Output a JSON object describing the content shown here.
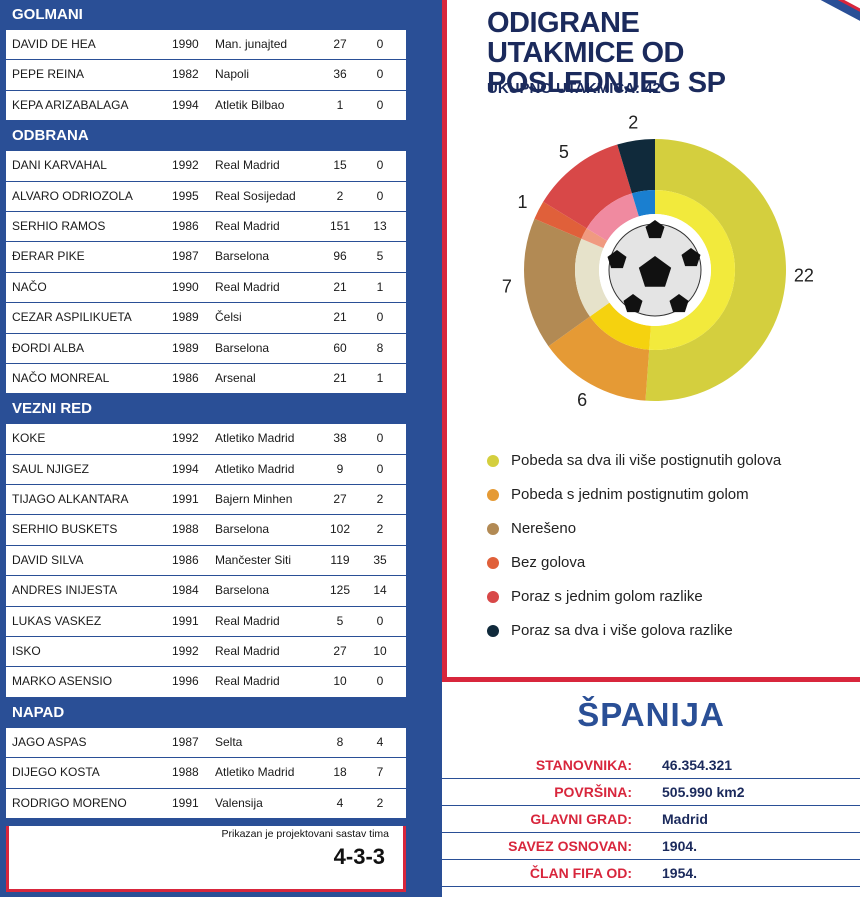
{
  "squad": {
    "sections": [
      {
        "title": "GOLMANI",
        "players": [
          {
            "name": "DAVID DE HEA",
            "year": "1990",
            "club": "Man. junajted",
            "apps": "27",
            "goals": "0"
          },
          {
            "name": "PEPE REINA",
            "year": "1982",
            "club": "Napoli",
            "apps": "36",
            "goals": "0"
          },
          {
            "name": "KEPA ARIZABALAGA",
            "year": "1994",
            "club": "Atletik Bilbao",
            "apps": "1",
            "goals": "0"
          }
        ]
      },
      {
        "title": "ODBRANA",
        "players": [
          {
            "name": "DANI KARVAHAL",
            "year": "1992",
            "club": "Real Madrid",
            "apps": "15",
            "goals": "0"
          },
          {
            "name": "ALVARO ODRIOZOLA",
            "year": "1995",
            "club": "Real Sosijedad",
            "apps": "2",
            "goals": "0"
          },
          {
            "name": "SERHIO RAMOS",
            "year": "1986",
            "club": "Real Madrid",
            "apps": "151",
            "goals": "13"
          },
          {
            "name": "ĐERAR PIKE",
            "year": "1987",
            "club": "Barselona",
            "apps": "96",
            "goals": "5"
          },
          {
            "name": "NAČO",
            "year": "1990",
            "club": "Real Madrid",
            "apps": "21",
            "goals": "1"
          },
          {
            "name": "CEZAR ASPILIKUETA",
            "year": "1989",
            "club": "Čelsi",
            "apps": "21",
            "goals": "0"
          },
          {
            "name": "ĐORDI ALBA",
            "year": "1989",
            "club": "Barselona",
            "apps": "60",
            "goals": "8"
          },
          {
            "name": "NAČO MONREAL",
            "year": "1986",
            "club": "Arsenal",
            "apps": "21",
            "goals": "1"
          }
        ]
      },
      {
        "title": "VEZNI RED",
        "players": [
          {
            "name": "KOKE",
            "year": "1992",
            "club": "Atletiko Madrid",
            "apps": "38",
            "goals": "0"
          },
          {
            "name": "SAUL NJIGEZ",
            "year": "1994",
            "club": "Atletiko Madrid",
            "apps": "9",
            "goals": "0"
          },
          {
            "name": "TIJAGO ALKANTARA",
            "year": "1991",
            "club": "Bajern Minhen",
            "apps": "27",
            "goals": "2"
          },
          {
            "name": "SERHIO BUSKETS",
            "year": "1988",
            "club": "Barselona",
            "apps": "102",
            "goals": "2"
          },
          {
            "name": "DAVID SILVA",
            "year": "1986",
            "club": "Mančester Siti",
            "apps": "119",
            "goals": "35"
          },
          {
            "name": "ANDRES INIJESTA",
            "year": "1984",
            "club": "Barselona",
            "apps": "125",
            "goals": "14"
          },
          {
            "name": "LUKAS VASKEZ",
            "year": "1991",
            "club": "Real Madrid",
            "apps": "5",
            "goals": "0"
          },
          {
            "name": "ISKO",
            "year": "1992",
            "club": "Real Madrid",
            "apps": "27",
            "goals": "10"
          },
          {
            "name": "MARKO ASENSIO",
            "year": "1996",
            "club": "Real Madrid",
            "apps": "10",
            "goals": "0"
          }
        ]
      },
      {
        "title": "NAPAD",
        "players": [
          {
            "name": "JAGO ASPAS",
            "year": "1987",
            "club": "Selta",
            "apps": "8",
            "goals": "4"
          },
          {
            "name": "DIJEGO KOSTA",
            "year": "1988",
            "club": "Atletiko Madrid",
            "apps": "18",
            "goals": "7"
          },
          {
            "name": "RODRIGO MORENO",
            "year": "1991",
            "club": "Valensija",
            "apps": "4",
            "goals": "2"
          }
        ]
      }
    ],
    "formation_note": "Prikazan je projektovani sastav tima",
    "formation": "4-3-3"
  },
  "chart_data": {
    "type": "pie",
    "title": "ODIGRANE UTAKMICE OD POSLEDNJEG SP",
    "subtitle": "UKUPNO UTAKMICA: 42",
    "categories": [
      "Pobeda sa dva ili više postignutih golova",
      "Pobeda s jednim postignutim golom",
      "Nerešeno",
      "Bez golova",
      "Poraz s jednim golom razlike",
      "Poraz sa dva i više golova razlike"
    ],
    "values": [
      22,
      6,
      7,
      1,
      5,
      2
    ],
    "colors": [
      "#d4cf3e",
      "#e59a35",
      "#b28a54",
      "#e0603a",
      "#d84848",
      "#102a3b"
    ],
    "inner_colors": [
      "#f2ea3c",
      "#f5d20f",
      "#e6e2ca",
      "#f09a80",
      "#f08aa0",
      "#1a7fd0"
    ],
    "legend_position": "bottom"
  },
  "country": {
    "name": "ŠPANIJA",
    "facts": [
      {
        "label": "STANOVNIKA:",
        "value": "46.354.321"
      },
      {
        "label": "POVRŠINA:",
        "value": "505.990 km2"
      },
      {
        "label": "GLAVNI GRAD:",
        "value": "Madrid"
      },
      {
        "label": "SAVEZ OSNOVAN:",
        "value": "1904."
      },
      {
        "label": "ČLAN FIFA OD:",
        "value": "1954."
      }
    ]
  }
}
